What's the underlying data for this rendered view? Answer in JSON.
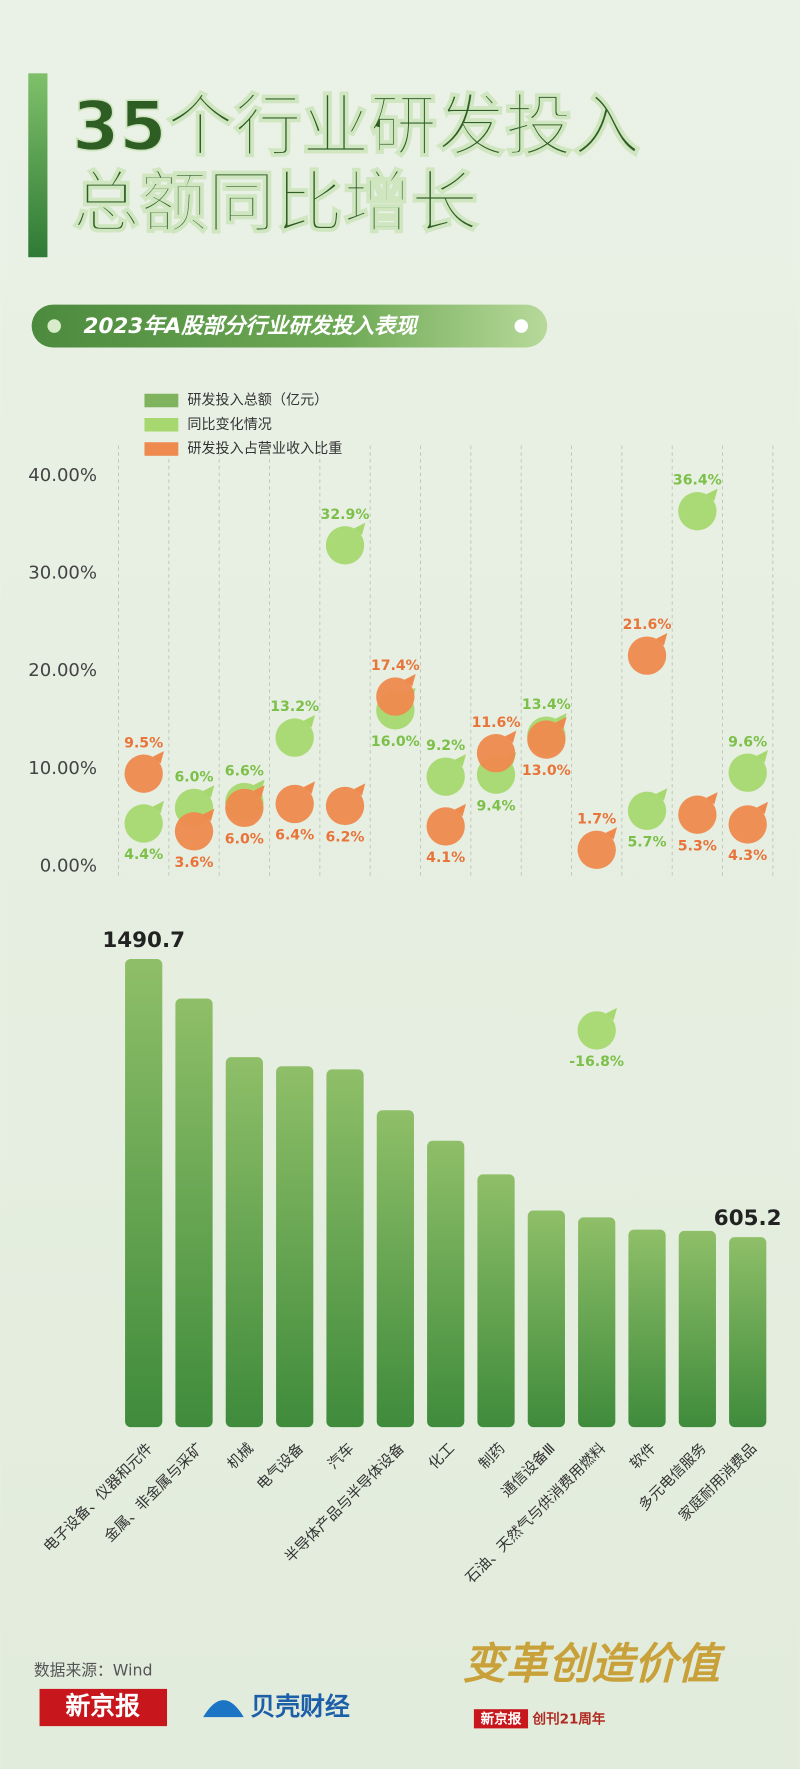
{
  "chart_data": {
    "type": "bar",
    "title": [
      "35个行业研发投入",
      "总额同比增长"
    ],
    "subtitle": "2023年A股部分行业研发投入表现",
    "categories": [
      "电子设备、仪器和元件",
      "金属、非金属与采矿",
      "机械",
      "电气设备",
      "汽车",
      "半导体产品与半导体设备",
      "化工",
      "制药",
      "通信设备Ⅲ",
      "石油、天然气与供消费用燃料",
      "软件",
      "多元电信服务",
      "家庭耐用消费品"
    ],
    "series": [
      {
        "name": "研发投入总额（亿元）",
        "type": "bar",
        "color": "#7fb35e",
        "values": [
          1490.7,
          1365,
          1178,
          1149,
          1139,
          1009,
          912,
          805,
          690,
          668,
          629,
          625,
          605.2
        ],
        "value_labels": [
          "1490.7",
          null,
          null,
          null,
          null,
          null,
          null,
          null,
          null,
          null,
          null,
          null,
          "605.2"
        ]
      },
      {
        "name": "同比变化情况",
        "type": "scatter",
        "color": "#a6d86f",
        "label_color": "#7cc04a",
        "values": [
          4.4,
          6.0,
          6.6,
          13.2,
          32.9,
          16.0,
          9.2,
          9.4,
          13.4,
          -16.8,
          5.7,
          36.4,
          9.6
        ],
        "value_labels": [
          "4.4%",
          "6.0%",
          "6.6%",
          "13.2%",
          "32.9%",
          "16.0%",
          "9.2%",
          "9.4%",
          "13.4%",
          "-16.8%",
          "5.7%",
          "36.4%",
          "9.6%"
        ]
      },
      {
        "name": "研发投入占营业收入比重",
        "type": "scatter",
        "color": "#ee8a4e",
        "label_color": "#e8743a",
        "values": [
          9.5,
          3.6,
          6.0,
          6.4,
          6.2,
          17.4,
          4.1,
          11.6,
          13.0,
          1.7,
          21.6,
          5.3,
          4.3
        ],
        "value_labels": [
          "9.5%",
          "3.6%",
          "6.0%",
          "6.4%",
          "6.2%",
          "17.4%",
          "4.1%",
          "11.6%",
          "13.0%",
          "1.7%",
          "21.6%",
          "5.3%",
          "4.3%"
        ]
      }
    ],
    "ylim": [
      -20,
      43
    ],
    "yticks": [
      {
        "value": 0,
        "label": "0.00%"
      },
      {
        "value": 10,
        "label": "10.00%"
      },
      {
        "value": 20,
        "label": "20.00%"
      },
      {
        "value": 30,
        "label": "30.00%"
      },
      {
        "value": 40,
        "label": "40.00%"
      }
    ],
    "legend": "top-left"
  },
  "footer": {
    "source": "数据来源：Wind",
    "logo_1": "新京报",
    "logo_2": "贝壳财经",
    "slogan": "变革创造价值",
    "badge": "新京报",
    "anniversary": "创刊21周年"
  }
}
